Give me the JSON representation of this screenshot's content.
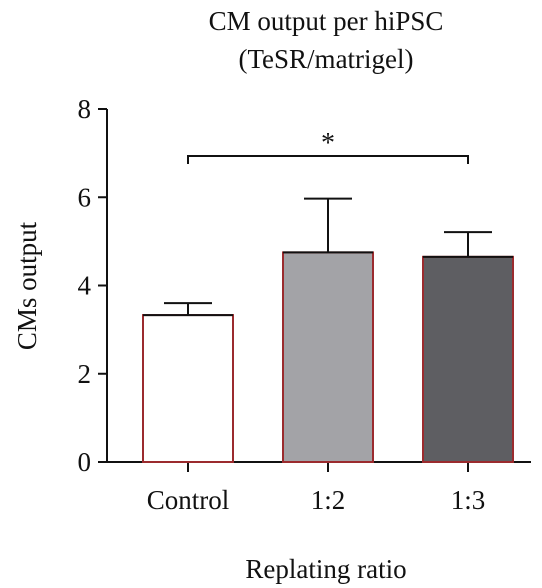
{
  "chart_data": {
    "type": "bar",
    "title_line1": "CM output per hiPSC",
    "title_line2": "(TeSR/matrigel)",
    "xlabel": "Replating ratio",
    "ylabel": "CMs output",
    "ylim": [
      0,
      8
    ],
    "yticks": [
      0,
      2,
      4,
      6,
      8
    ],
    "categories": [
      "Control",
      "1:2",
      "1:3"
    ],
    "values": [
      3.33,
      4.75,
      4.65
    ],
    "errors": [
      0.27,
      1.22,
      0.56
    ],
    "bar_fills": [
      "#ffffff",
      "#a3a3a7",
      "#5e5e62"
    ],
    "bar_edge": "#9b2b2e",
    "significance": {
      "from": 0,
      "to": 2,
      "label": "*"
    },
    "grid": false,
    "legend": "none"
  }
}
